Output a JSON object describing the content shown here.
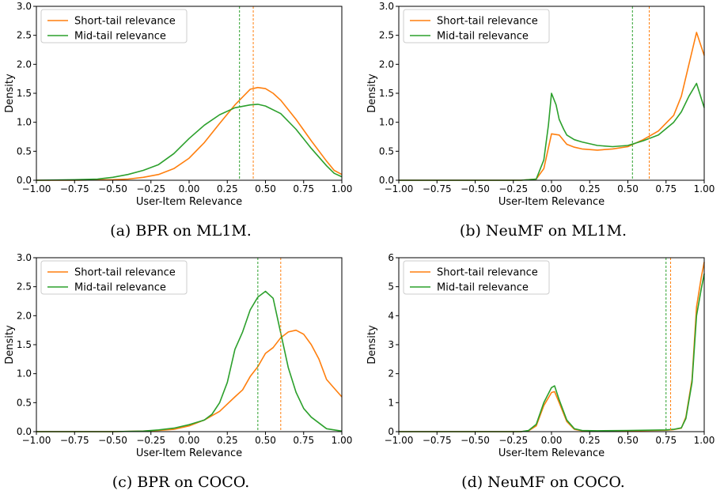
{
  "colors": {
    "short": "#ff7f0e",
    "mid": "#2ca02c"
  },
  "chart_data": [
    {
      "type": "line",
      "caption": "(a) BPR on ML1M.",
      "xlabel": "User-Item Relevance",
      "ylabel": "Density",
      "xlim": [
        -1.0,
        1.0
      ],
      "ylim": [
        0,
        3.0
      ],
      "xticks": [
        "-1.00",
        "-0.75",
        "-0.50",
        "-0.25",
        "0.00",
        "0.25",
        "0.50",
        "0.75",
        "1.00"
      ],
      "yticks": [
        "0.0",
        "0.5",
        "1.0",
        "1.5",
        "2.0",
        "2.5",
        "3.0"
      ],
      "xtick_values": [
        -1.0,
        -0.75,
        -0.5,
        -0.25,
        0,
        0.25,
        0.5,
        0.75,
        1.0
      ],
      "ytick_values": [
        0,
        0.5,
        1.0,
        1.5,
        2.0,
        2.5,
        3.0
      ],
      "legend": [
        "Short-tail relevance",
        "Mid-tail relevance"
      ],
      "legend_position": "top-left",
      "grid": false,
      "series": [
        {
          "name": "Short-tail relevance",
          "x": [
            -1.0,
            -0.75,
            -0.5,
            -0.4,
            -0.3,
            -0.2,
            -0.1,
            0.0,
            0.1,
            0.2,
            0.3,
            0.4,
            0.45,
            0.5,
            0.55,
            0.6,
            0.7,
            0.8,
            0.9,
            0.95,
            1.0
          ],
          "y": [
            0.0,
            0.0,
            0.01,
            0.02,
            0.05,
            0.1,
            0.2,
            0.38,
            0.65,
            0.98,
            1.3,
            1.57,
            1.6,
            1.58,
            1.5,
            1.38,
            1.05,
            0.68,
            0.33,
            0.17,
            0.1
          ]
        },
        {
          "name": "Mid-tail relevance",
          "x": [
            -1.0,
            -0.75,
            -0.6,
            -0.5,
            -0.4,
            -0.3,
            -0.2,
            -0.1,
            0.0,
            0.1,
            0.2,
            0.3,
            0.4,
            0.45,
            0.5,
            0.6,
            0.7,
            0.8,
            0.9,
            0.95,
            1.0
          ],
          "y": [
            0.0,
            0.01,
            0.02,
            0.05,
            0.1,
            0.17,
            0.27,
            0.46,
            0.72,
            0.95,
            1.13,
            1.25,
            1.3,
            1.31,
            1.28,
            1.15,
            0.88,
            0.55,
            0.25,
            0.12,
            0.06
          ]
        }
      ],
      "vlines": [
        {
          "series": "Mid-tail relevance",
          "x": 0.33
        },
        {
          "series": "Short-tail relevance",
          "x": 0.42
        }
      ]
    },
    {
      "type": "line",
      "caption": "(b) NeuMF on ML1M.",
      "xlabel": "User-Item Relevance",
      "ylabel": "Density",
      "xlim": [
        -1.0,
        1.0
      ],
      "ylim": [
        0,
        3.0
      ],
      "xticks": [
        "-1.00",
        "-0.75",
        "-0.50",
        "-0.25",
        "0.00",
        "0.25",
        "0.50",
        "0.75",
        "1.00"
      ],
      "yticks": [
        "0.0",
        "0.5",
        "1.0",
        "1.5",
        "2.0",
        "2.5",
        "3.0"
      ],
      "xtick_values": [
        -1.0,
        -0.75,
        -0.5,
        -0.25,
        0,
        0.25,
        0.5,
        0.75,
        1.0
      ],
      "ytick_values": [
        0,
        0.5,
        1.0,
        1.5,
        2.0,
        2.5,
        3.0
      ],
      "legend": [
        "Short-tail relevance",
        "Mid-tail relevance"
      ],
      "legend_position": "top-left",
      "grid": false,
      "series": [
        {
          "name": "Short-tail relevance",
          "x": [
            -1.0,
            -0.2,
            -0.1,
            -0.05,
            0.0,
            0.05,
            0.1,
            0.15,
            0.2,
            0.3,
            0.4,
            0.5,
            0.6,
            0.7,
            0.8,
            0.85,
            0.9,
            0.95,
            1.0
          ],
          "y": [
            0.0,
            0.0,
            0.02,
            0.2,
            0.8,
            0.78,
            0.62,
            0.57,
            0.54,
            0.52,
            0.54,
            0.58,
            0.7,
            0.85,
            1.12,
            1.45,
            2.0,
            2.55,
            2.15
          ]
        },
        {
          "name": "Mid-tail relevance",
          "x": [
            -1.0,
            -0.2,
            -0.1,
            -0.05,
            -0.02,
            0.0,
            0.03,
            0.05,
            0.08,
            0.1,
            0.15,
            0.2,
            0.3,
            0.4,
            0.5,
            0.6,
            0.7,
            0.8,
            0.85,
            0.9,
            0.95,
            1.0
          ],
          "y": [
            0.0,
            0.0,
            0.02,
            0.35,
            0.95,
            1.5,
            1.3,
            1.05,
            0.88,
            0.78,
            0.7,
            0.66,
            0.6,
            0.58,
            0.6,
            0.68,
            0.78,
            1.0,
            1.18,
            1.45,
            1.67,
            1.25
          ]
        }
      ],
      "vlines": [
        {
          "series": "Mid-tail relevance",
          "x": 0.53
        },
        {
          "series": "Short-tail relevance",
          "x": 0.64
        }
      ]
    },
    {
      "type": "line",
      "caption": "(c) BPR on COCO.",
      "xlabel": "User-Item Relevance",
      "ylabel": "Density",
      "xlim": [
        -1.0,
        1.0
      ],
      "ylim": [
        0,
        3.0
      ],
      "xticks": [
        "-1.00",
        "-0.75",
        "-0.50",
        "-0.25",
        "0.00",
        "0.25",
        "0.50",
        "0.75",
        "1.00"
      ],
      "yticks": [
        "0.0",
        "0.5",
        "1.0",
        "1.5",
        "2.0",
        "2.5",
        "3.0"
      ],
      "xtick_values": [
        -1.0,
        -0.75,
        -0.5,
        -0.25,
        0,
        0.25,
        0.5,
        0.75,
        1.0
      ],
      "ytick_values": [
        0,
        0.5,
        1.0,
        1.5,
        2.0,
        2.5,
        3.0
      ],
      "legend": [
        "Short-tail relevance",
        "Mid-tail relevance"
      ],
      "legend_position": "top-left",
      "grid": false,
      "series": [
        {
          "name": "Short-tail relevance",
          "x": [
            -1.0,
            -0.5,
            -0.3,
            -0.2,
            -0.1,
            0.0,
            0.1,
            0.2,
            0.3,
            0.35,
            0.4,
            0.45,
            0.5,
            0.55,
            0.6,
            0.65,
            0.7,
            0.75,
            0.8,
            0.85,
            0.9,
            0.95,
            1.0
          ],
          "y": [
            0.0,
            0.0,
            0.01,
            0.02,
            0.04,
            0.1,
            0.2,
            0.35,
            0.6,
            0.72,
            0.95,
            1.12,
            1.35,
            1.45,
            1.62,
            1.72,
            1.75,
            1.68,
            1.5,
            1.25,
            0.9,
            0.75,
            0.6
          ]
        },
        {
          "name": "Mid-tail relevance",
          "x": [
            -1.0,
            -0.5,
            -0.3,
            -0.2,
            -0.1,
            0.0,
            0.1,
            0.15,
            0.2,
            0.25,
            0.3,
            0.35,
            0.4,
            0.45,
            0.5,
            0.55,
            0.6,
            0.65,
            0.7,
            0.75,
            0.8,
            0.9,
            1.0
          ],
          "y": [
            0.0,
            0.0,
            0.01,
            0.03,
            0.06,
            0.12,
            0.2,
            0.3,
            0.5,
            0.85,
            1.42,
            1.72,
            2.1,
            2.32,
            2.42,
            2.3,
            1.7,
            1.1,
            0.68,
            0.4,
            0.25,
            0.05,
            0.01
          ]
        }
      ],
      "vlines": [
        {
          "series": "Mid-tail relevance",
          "x": 0.45
        },
        {
          "series": "Short-tail relevance",
          "x": 0.6
        }
      ]
    },
    {
      "type": "line",
      "caption": "(d) NeuMF on COCO.",
      "xlabel": "User-Item Relevance",
      "ylabel": "Density",
      "xlim": [
        -1.0,
        1.0
      ],
      "ylim": [
        0,
        6
      ],
      "xticks": [
        "-1.00",
        "-0.75",
        "-0.50",
        "-0.25",
        "0.00",
        "0.25",
        "0.50",
        "0.75",
        "1.00"
      ],
      "yticks": [
        "0",
        "1",
        "2",
        "3",
        "4",
        "5",
        "6"
      ],
      "xtick_values": [
        -1.0,
        -0.75,
        -0.5,
        -0.25,
        0,
        0.25,
        0.5,
        0.75,
        1.0
      ],
      "ytick_values": [
        0,
        1,
        2,
        3,
        4,
        5,
        6
      ],
      "legend": [
        "Short-tail relevance",
        "Mid-tail relevance"
      ],
      "legend_position": "top-left",
      "grid": false,
      "series": [
        {
          "name": "Short-tail relevance",
          "x": [
            -1.0,
            -0.2,
            -0.15,
            -0.1,
            -0.05,
            0.0,
            0.02,
            0.05,
            0.1,
            0.15,
            0.2,
            0.3,
            0.5,
            0.75,
            0.8,
            0.85,
            0.88,
            0.92,
            0.95,
            0.98,
            1.0
          ],
          "y": [
            0.0,
            0.0,
            0.03,
            0.2,
            0.9,
            1.35,
            1.38,
            1.0,
            0.35,
            0.08,
            0.03,
            0.02,
            0.03,
            0.05,
            0.07,
            0.12,
            0.5,
            1.8,
            4.3,
            5.3,
            5.85
          ]
        },
        {
          "name": "Mid-tail relevance",
          "x": [
            -1.0,
            -0.2,
            -0.15,
            -0.1,
            -0.05,
            0.0,
            0.02,
            0.05,
            0.1,
            0.15,
            0.2,
            0.3,
            0.5,
            0.75,
            0.8,
            0.85,
            0.88,
            0.92,
            0.95,
            0.98,
            1.0
          ],
          "y": [
            0.0,
            0.0,
            0.04,
            0.25,
            1.0,
            1.52,
            1.58,
            1.1,
            0.4,
            0.1,
            0.04,
            0.03,
            0.04,
            0.06,
            0.08,
            0.13,
            0.45,
            1.7,
            4.0,
            4.9,
            5.45
          ]
        }
      ],
      "vlines": [
        {
          "series": "Mid-tail relevance",
          "x": 0.75
        },
        {
          "series": "Short-tail relevance",
          "x": 0.78
        }
      ]
    }
  ]
}
